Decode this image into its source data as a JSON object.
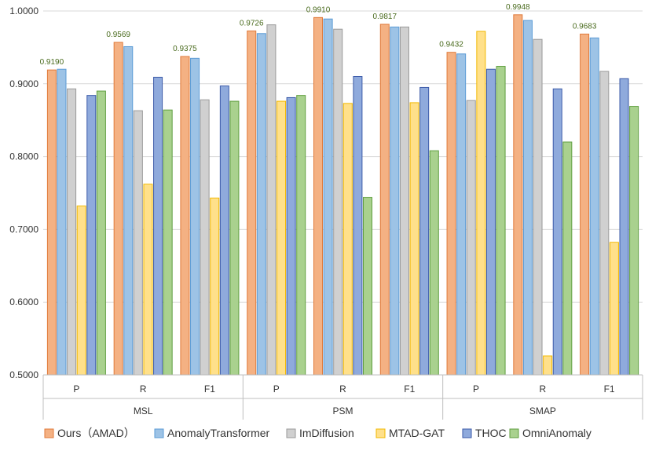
{
  "chart_data": {
    "type": "bar",
    "groups": [
      {
        "name": "MSL",
        "categories": [
          "P",
          "R",
          "F1"
        ]
      },
      {
        "name": "PSM",
        "categories": [
          "P",
          "R",
          "F1"
        ]
      },
      {
        "name": "SMAP",
        "categories": [
          "P",
          "R",
          "F1"
        ]
      }
    ],
    "ylim": [
      0.5,
      1.0
    ],
    "yticks": [
      "0.5000",
      "0.6000",
      "0.7000",
      "0.8000",
      "0.9000",
      "1.0000"
    ],
    "grid": true,
    "legend_position": "bottom",
    "series": [
      {
        "name": "Ours（AMAD）",
        "fill": "#f4b183",
        "stroke": "#e07a3a",
        "values": [
          0.919,
          0.9569,
          0.9375,
          0.9726,
          0.991,
          0.9817,
          0.9432,
          0.9948,
          0.9683
        ]
      },
      {
        "name": "AnomalyTransformer",
        "fill": "#9dc3e6",
        "stroke": "#5b9bd5",
        "values": [
          0.92,
          0.951,
          0.935,
          0.969,
          0.989,
          0.978,
          0.941,
          0.987,
          0.963
        ]
      },
      {
        "name": "ImDiffusion",
        "fill": "#d0d0d0",
        "stroke": "#9a9a9a",
        "values": [
          0.893,
          0.863,
          0.878,
          0.981,
          0.975,
          0.978,
          0.877,
          0.961,
          0.917
        ]
      },
      {
        "name": "MTAD-GAT",
        "fill": "#ffe08a",
        "stroke": "#f2b800",
        "values": [
          0.732,
          0.762,
          0.743,
          0.876,
          0.873,
          0.874,
          0.972,
          0.526,
          0.682
        ]
      },
      {
        "name": "THOC",
        "fill": "#8faadc",
        "stroke": "#3b5aa8",
        "values": [
          0.884,
          0.909,
          0.897,
          0.881,
          0.91,
          0.895,
          0.92,
          0.893,
          0.907
        ]
      },
      {
        "name": "OmniAnomaly",
        "fill": "#a9d18e",
        "stroke": "#5f9e3f",
        "values": [
          0.89,
          0.864,
          0.876,
          0.884,
          0.744,
          0.808,
          0.924,
          0.82,
          0.869
        ]
      }
    ],
    "data_labels": [
      "0.9190",
      "0.9569",
      "0.9375",
      "0.9726",
      "0.9910",
      "0.9817",
      "0.9432",
      "0.9948",
      "0.9683"
    ]
  }
}
